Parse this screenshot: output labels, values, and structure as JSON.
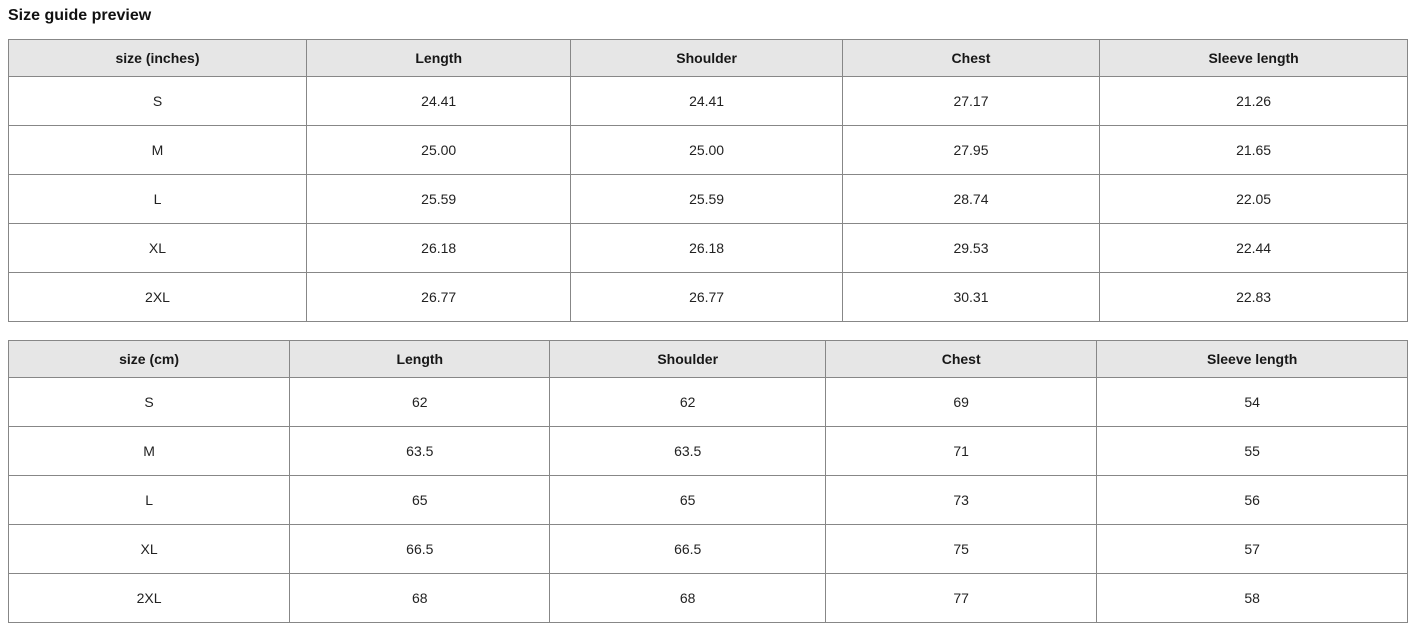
{
  "title": "Size guide preview",
  "tables": [
    {
      "name": "size-table-inches",
      "headers": [
        "size (inches)",
        "Length",
        "Shoulder",
        "Chest",
        "Sleeve length"
      ],
      "rows": [
        [
          "S",
          "24.41",
          "24.41",
          "27.17",
          "21.26"
        ],
        [
          "M",
          "25.00",
          "25.00",
          "27.95",
          "21.65"
        ],
        [
          "L",
          "25.59",
          "25.59",
          "28.74",
          "22.05"
        ],
        [
          "XL",
          "26.18",
          "26.18",
          "29.53",
          "22.44"
        ],
        [
          "2XL",
          "26.77",
          "26.77",
          "30.31",
          "22.83"
        ]
      ]
    },
    {
      "name": "size-table-cm",
      "headers": [
        "size (cm)",
        "Length",
        "Shoulder",
        "Chest",
        "Sleeve length"
      ],
      "rows": [
        [
          "S",
          "62",
          "62",
          "69",
          "54"
        ],
        [
          "M",
          "63.5",
          "63.5",
          "71",
          "55"
        ],
        [
          "L",
          "65",
          "65",
          "73",
          "56"
        ],
        [
          "XL",
          "66.5",
          "66.5",
          "75",
          "57"
        ],
        [
          "2XL",
          "68",
          "68",
          "77",
          "58"
        ]
      ]
    }
  ],
  "colors": {
    "header_bg": "#e6e6e6",
    "border": "#878787",
    "text": "#222222"
  }
}
